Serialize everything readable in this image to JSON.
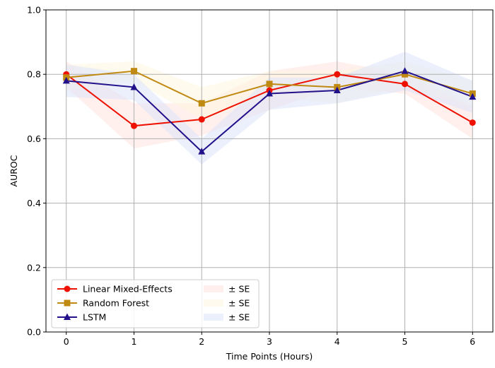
{
  "chart_data": {
    "type": "line",
    "xlabel": "Time Points (Hours)",
    "ylabel": "AUROC",
    "x": [
      0,
      1,
      2,
      3,
      4,
      5,
      6
    ],
    "xlim": [
      -0.3,
      6.3
    ],
    "ylim": [
      0.0,
      1.0
    ],
    "x_ticks": [
      "0",
      "1",
      "2",
      "3",
      "4",
      "5",
      "6"
    ],
    "y_ticks": [
      "0.0",
      "0.2",
      "0.4",
      "0.6",
      "0.8",
      "1.0"
    ],
    "grid": true,
    "legend_position": "lower-left",
    "series": [
      {
        "name": "Linear Mixed-Effects",
        "color": "#ee1100",
        "marker": "circle",
        "values": [
          0.8,
          0.64,
          0.66,
          0.75,
          0.8,
          0.77,
          0.65
        ],
        "se": [
          0.04,
          0.07,
          0.05,
          0.06,
          0.04,
          0.03,
          0.05
        ],
        "band_label": "± SE",
        "band_color": "#ffe4de"
      },
      {
        "name": "Random Forest",
        "color": "#c08a12",
        "marker": "square",
        "values": [
          0.79,
          0.81,
          0.71,
          0.77,
          0.76,
          0.8,
          0.74
        ],
        "se": [
          0.04,
          0.03,
          0.05,
          0.04,
          0.05,
          0.04,
          0.04
        ],
        "band_label": "± SE",
        "band_color": "#fdf5df"
      },
      {
        "name": "LSTM",
        "color": "#22118a",
        "marker": "triangle",
        "values": [
          0.78,
          0.76,
          0.56,
          0.74,
          0.75,
          0.81,
          0.73
        ],
        "se": [
          0.05,
          0.04,
          0.04,
          0.05,
          0.04,
          0.06,
          0.05
        ],
        "band_label": "± SE",
        "band_color": "#dde4fb"
      }
    ]
  }
}
